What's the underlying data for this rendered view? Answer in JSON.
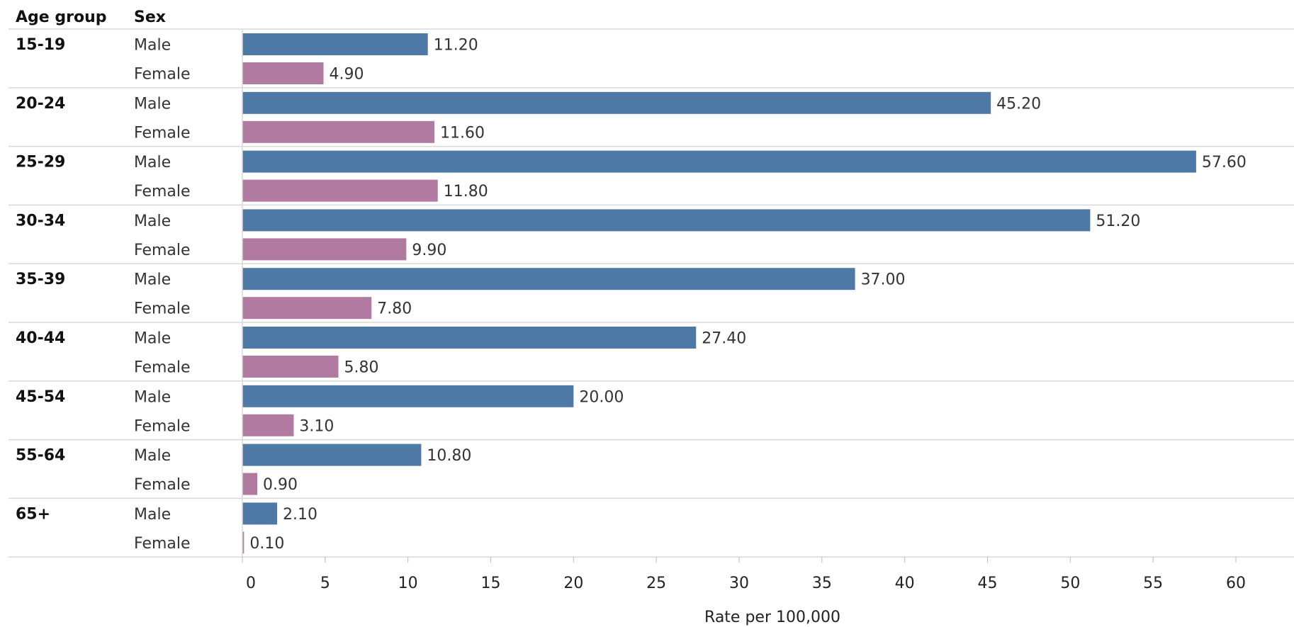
{
  "headers": {
    "age_group": "Age group",
    "sex": "Sex"
  },
  "colors": {
    "male": "#4e79a7",
    "female": "#b07aa1",
    "grid": "#d9d9d9",
    "text": "#333333"
  },
  "chart_data": {
    "type": "bar",
    "orientation": "horizontal",
    "xlabel": "Rate per 100,000",
    "xlim": [
      0,
      60
    ],
    "x_ticks": [
      0,
      5,
      10,
      15,
      20,
      25,
      30,
      35,
      40,
      45,
      50,
      55,
      60
    ],
    "value_label_format": "2 decimals",
    "series_names": [
      "Male",
      "Female"
    ],
    "groups": [
      {
        "age_group": "15-19",
        "bars": [
          {
            "sex": "Male",
            "value": 11.2,
            "label": "11.20"
          },
          {
            "sex": "Female",
            "value": 4.9,
            "label": "4.90"
          }
        ]
      },
      {
        "age_group": "20-24",
        "bars": [
          {
            "sex": "Male",
            "value": 45.2,
            "label": "45.20"
          },
          {
            "sex": "Female",
            "value": 11.6,
            "label": "11.60"
          }
        ]
      },
      {
        "age_group": "25-29",
        "bars": [
          {
            "sex": "Male",
            "value": 57.6,
            "label": "57.60"
          },
          {
            "sex": "Female",
            "value": 11.8,
            "label": "11.80"
          }
        ]
      },
      {
        "age_group": "30-34",
        "bars": [
          {
            "sex": "Male",
            "value": 51.2,
            "label": "51.20"
          },
          {
            "sex": "Female",
            "value": 9.9,
            "label": "9.90"
          }
        ]
      },
      {
        "age_group": "35-39",
        "bars": [
          {
            "sex": "Male",
            "value": 37.0,
            "label": "37.00"
          },
          {
            "sex": "Female",
            "value": 7.8,
            "label": "7.80"
          }
        ]
      },
      {
        "age_group": "40-44",
        "bars": [
          {
            "sex": "Male",
            "value": 27.4,
            "label": "27.40"
          },
          {
            "sex": "Female",
            "value": 5.8,
            "label": "5.80"
          }
        ]
      },
      {
        "age_group": "45-54",
        "bars": [
          {
            "sex": "Male",
            "value": 20.0,
            "label": "20.00"
          },
          {
            "sex": "Female",
            "value": 3.1,
            "label": "3.10"
          }
        ]
      },
      {
        "age_group": "55-64",
        "bars": [
          {
            "sex": "Male",
            "value": 10.8,
            "label": "10.80"
          },
          {
            "sex": "Female",
            "value": 0.9,
            "label": "0.90"
          }
        ]
      },
      {
        "age_group": "65+",
        "bars": [
          {
            "sex": "Male",
            "value": 2.1,
            "label": "2.10"
          },
          {
            "sex": "Female",
            "value": 0.1,
            "label": "0.10"
          }
        ]
      }
    ]
  }
}
